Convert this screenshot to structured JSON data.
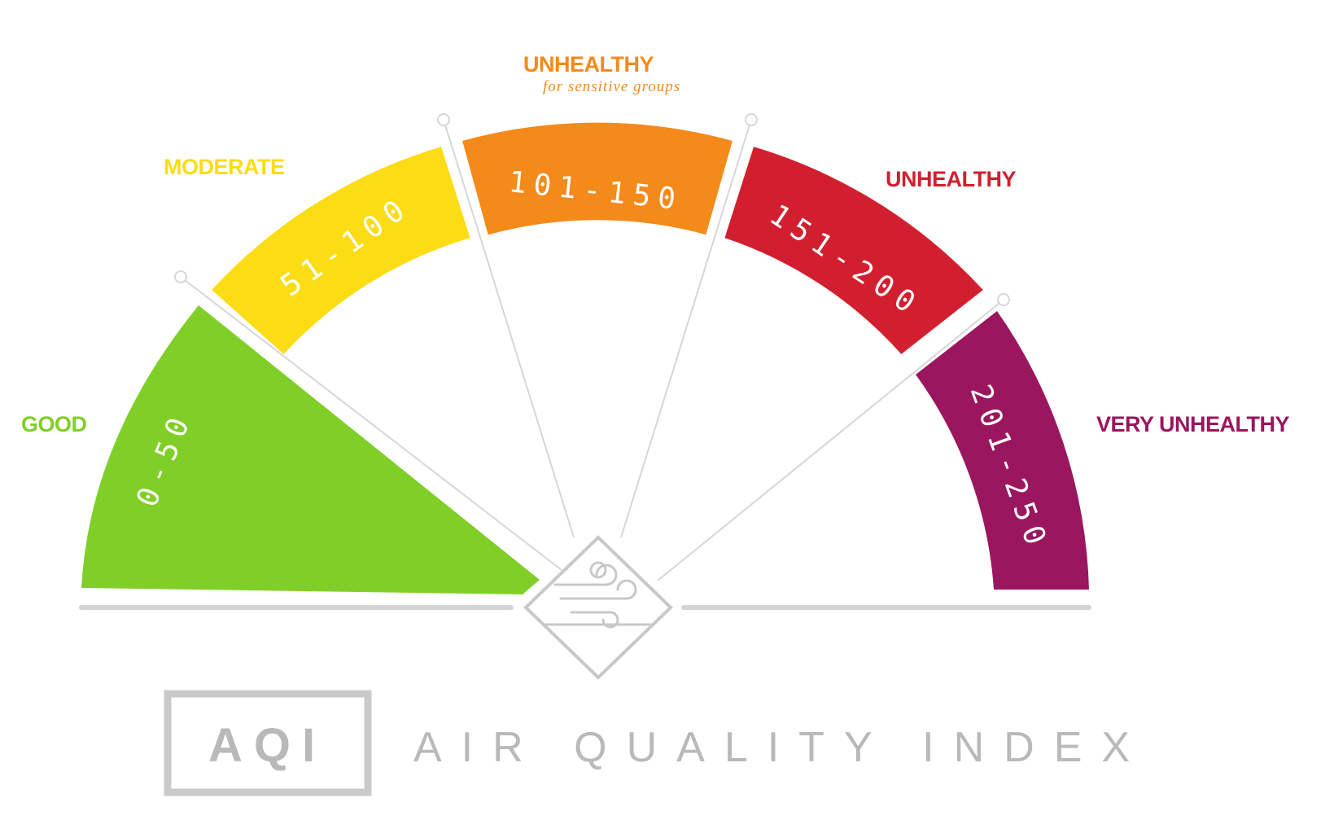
{
  "segments": [
    {
      "category": "GOOD",
      "range": "0-50",
      "color": "#80cf28"
    },
    {
      "category": "MODERATE",
      "range": "51-100",
      "color": "#fcdc14"
    },
    {
      "category": "UNHEALTHY",
      "subtitle": "for sensitive groups",
      "range": "101-150",
      "color": "#f48a1a"
    },
    {
      "category": "UNHEALTHY",
      "range": "151-200",
      "color": "#d21f2f"
    },
    {
      "category": "VERY UNHEALTHY",
      "range": "201-250",
      "color": "#9a165e"
    }
  ],
  "indicator_value": 25,
  "icon": "wind-icon",
  "badge_text": "AQI",
  "title_text": "AIR QUALITY INDEX",
  "colors": {
    "neutral": "#c8c8c8",
    "text_gray": "#b9b9b9"
  }
}
